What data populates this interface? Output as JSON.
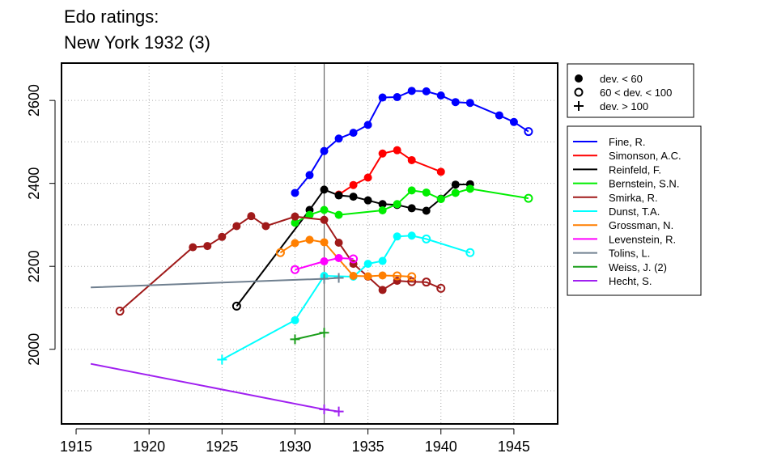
{
  "chart_data": {
    "type": "line",
    "title_lines": [
      "Edo ratings:",
      "New York 1932 (3)"
    ],
    "xlabel": "",
    "ylabel": "",
    "xlim": [
      1914,
      1948
    ],
    "ylim": [
      1820,
      2690
    ],
    "x_ticks": [
      1915,
      1920,
      1925,
      1930,
      1935,
      1940,
      1945
    ],
    "y_ticks": [
      2000,
      2200,
      2400,
      2600
    ],
    "minor_grid_x": [
      1920,
      1925,
      1930,
      1935,
      1940,
      1945
    ],
    "minor_grid_y": [
      1900,
      2000,
      2100,
      2200,
      2300,
      2400,
      2500,
      2600
    ],
    "vline_x": 1932,
    "grid": "dotted",
    "marker_legend": {
      "placement": "top-right-outside",
      "items": [
        {
          "symbol": "dot",
          "label": "dev. < 60"
        },
        {
          "symbol": "circle",
          "label": "60 < dev. < 100"
        },
        {
          "symbol": "plus",
          "label": "dev. > 100"
        }
      ]
    },
    "legend_placement": "right-outside",
    "series": [
      {
        "name": "Fine, R.",
        "color": "#0000ff",
        "points": [
          [
            1930,
            2377,
            "d"
          ],
          [
            1931,
            2420,
            "d"
          ],
          [
            1932,
            2478,
            "d"
          ],
          [
            1933,
            2508,
            "d"
          ],
          [
            1934,
            2522,
            "d"
          ],
          [
            1935,
            2541,
            "d"
          ],
          [
            1936,
            2607,
            "d"
          ],
          [
            1937,
            2608,
            "d"
          ],
          [
            1938,
            2623,
            "d"
          ],
          [
            1939,
            2622,
            "d"
          ],
          [
            1940,
            2612,
            "d"
          ],
          [
            1941,
            2596,
            "d"
          ],
          [
            1942,
            2594,
            "d"
          ],
          [
            1944,
            2564,
            "d"
          ],
          [
            1945,
            2548,
            "d"
          ],
          [
            1946,
            2525,
            "c"
          ]
        ]
      },
      {
        "name": "Simonson, A.C.",
        "color": "#ff0000",
        "points": [
          [
            1933,
            2373,
            "d"
          ],
          [
            1934,
            2396,
            "d"
          ],
          [
            1935,
            2414,
            "d"
          ],
          [
            1936,
            2472,
            "d"
          ],
          [
            1937,
            2480,
            "d"
          ],
          [
            1938,
            2456,
            "d"
          ],
          [
            1940,
            2428,
            "d"
          ]
        ]
      },
      {
        "name": "Reinfeld, F.",
        "color": "#000000",
        "points": [
          [
            1926,
            2104,
            "c"
          ],
          [
            1931,
            2336,
            "d"
          ],
          [
            1932,
            2385,
            "d"
          ],
          [
            1933,
            2371,
            "d"
          ],
          [
            1934,
            2368,
            "d"
          ],
          [
            1935,
            2359,
            "d"
          ],
          [
            1936,
            2350,
            "d"
          ],
          [
            1937,
            2348,
            "d"
          ],
          [
            1938,
            2340,
            "d"
          ],
          [
            1939,
            2334,
            "d"
          ],
          [
            1940,
            2363,
            "d"
          ],
          [
            1941,
            2397,
            "d"
          ],
          [
            1942,
            2398,
            "d"
          ]
        ]
      },
      {
        "name": "Bernstein, S.N.",
        "color": "#00ee00",
        "points": [
          [
            1930,
            2305,
            "d"
          ],
          [
            1931,
            2324,
            "d"
          ],
          [
            1932,
            2336,
            "d"
          ],
          [
            1933,
            2324,
            "d"
          ],
          [
            1936,
            2335,
            "d"
          ],
          [
            1937,
            2350,
            "d"
          ],
          [
            1938,
            2383,
            "d"
          ],
          [
            1939,
            2378,
            "d"
          ],
          [
            1940,
            2362,
            "d"
          ],
          [
            1941,
            2377,
            "d"
          ],
          [
            1942,
            2387,
            "d"
          ],
          [
            1946,
            2364,
            "c"
          ]
        ]
      },
      {
        "name": "Smirka, R.",
        "color": "#a01a1a",
        "points": [
          [
            1918,
            2092,
            "c"
          ],
          [
            1923,
            2246,
            "d"
          ],
          [
            1924,
            2249,
            "d"
          ],
          [
            1925,
            2271,
            "d"
          ],
          [
            1926,
            2297,
            "d"
          ],
          [
            1927,
            2321,
            "d"
          ],
          [
            1928,
            2297,
            "d"
          ],
          [
            1930,
            2320,
            "d"
          ],
          [
            1932,
            2312,
            "d"
          ],
          [
            1933,
            2257,
            "d"
          ],
          [
            1934,
            2206,
            "d"
          ],
          [
            1935,
            2175,
            "d"
          ],
          [
            1936,
            2143,
            "d"
          ],
          [
            1937,
            2165,
            "d"
          ],
          [
            1938,
            2163,
            "c"
          ],
          [
            1939,
            2162,
            "c"
          ],
          [
            1940,
            2147,
            "c"
          ]
        ]
      },
      {
        "name": "Dunst, T.A.",
        "color": "#00ffff",
        "points": [
          [
            1925,
            1975,
            "p"
          ],
          [
            1930,
            2070,
            "d"
          ],
          [
            1932,
            2177,
            "d"
          ],
          [
            1934,
            2175,
            "d"
          ],
          [
            1935,
            2206,
            "d"
          ],
          [
            1936,
            2213,
            "d"
          ],
          [
            1937,
            2272,
            "d"
          ],
          [
            1938,
            2274,
            "d"
          ],
          [
            1939,
            2266,
            "c"
          ],
          [
            1942,
            2233,
            "c"
          ]
        ]
      },
      {
        "name": "Grossman, N.",
        "color": "#ff7f00",
        "points": [
          [
            1929,
            2233,
            "c"
          ],
          [
            1930,
            2256,
            "d"
          ],
          [
            1931,
            2264,
            "d"
          ],
          [
            1932,
            2258,
            "d"
          ],
          [
            1934,
            2177,
            "d"
          ],
          [
            1935,
            2176,
            "d"
          ],
          [
            1936,
            2178,
            "d"
          ],
          [
            1937,
            2177,
            "c"
          ],
          [
            1938,
            2175,
            "c"
          ]
        ]
      },
      {
        "name": "Levenstein, R.",
        "color": "#ff00ff",
        "points": [
          [
            1930,
            2192,
            "c"
          ],
          [
            1932,
            2212,
            "d"
          ],
          [
            1933,
            2220,
            "d"
          ],
          [
            1934,
            2218,
            "c"
          ]
        ]
      },
      {
        "name": "Tolins, L.",
        "color": "#708090",
        "points": [
          [
            1916,
            2149,
            "n"
          ],
          [
            1932,
            2170,
            "p"
          ],
          [
            1933,
            2172,
            "p"
          ]
        ]
      },
      {
        "name": "Weiss, J. (2)",
        "color": "#1a9e1a",
        "points": [
          [
            1930,
            2024,
            "p"
          ],
          [
            1932,
            2040,
            "p"
          ]
        ]
      },
      {
        "name": "Hecht, S.",
        "color": "#a020f0",
        "points": [
          [
            1916,
            1965,
            "n"
          ],
          [
            1932,
            1855,
            "p"
          ],
          [
            1933,
            1850,
            "p"
          ]
        ]
      }
    ]
  }
}
